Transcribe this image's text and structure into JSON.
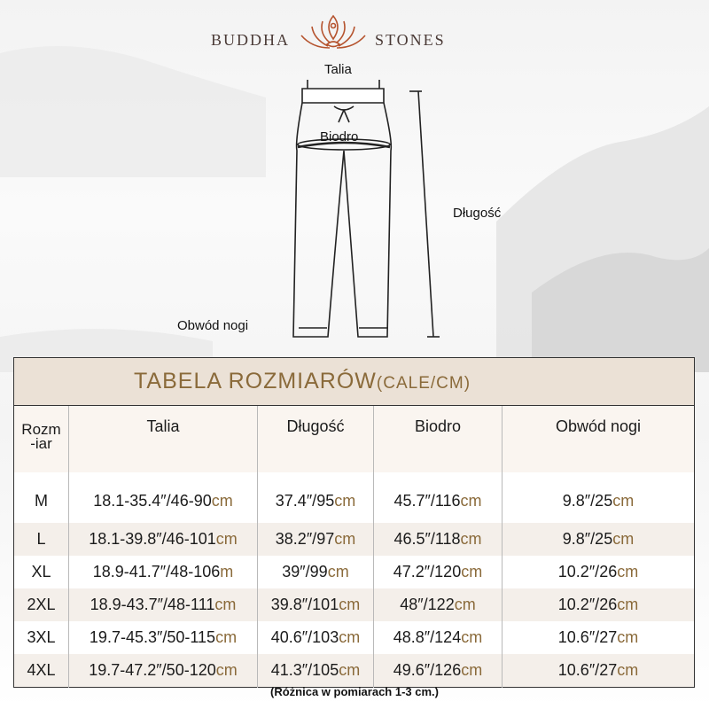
{
  "brand": {
    "left": "BUDDHA",
    "right": "STONES"
  },
  "diagram": {
    "waist": "Talia",
    "hip": "Biodro",
    "length": "Długość",
    "leg_opening": "Obwód nogi"
  },
  "table": {
    "title": "TABELA ROZMIARÓW",
    "title_units": "(CALE/CM)",
    "headers": [
      "Rozm\n-iar",
      "Talia",
      "Długość",
      "Biodro",
      "Obwód nogi"
    ],
    "header_size_line1": "Rozm",
    "header_size_line2": "-iar",
    "rows": [
      {
        "size": "M",
        "talia": [
          "18.1-35.4″/46-90",
          "cm"
        ],
        "dlugosc": [
          "37.4″/95",
          "cm"
        ],
        "biodro": [
          "45.7″/116",
          "cm"
        ],
        "obwod": [
          "9.8″/25",
          "cm"
        ]
      },
      {
        "size": "L",
        "talia": [
          "18.1-39.8″/46-101",
          "cm"
        ],
        "dlugosc": [
          "38.2″/97",
          "cm"
        ],
        "biodro": [
          "46.5″/118",
          "cm"
        ],
        "obwod": [
          "9.8″/25",
          "cm"
        ]
      },
      {
        "size": "XL",
        "talia": [
          "18.9-41.7″/48-106",
          "m"
        ],
        "dlugosc": [
          "39″/99",
          "cm"
        ],
        "biodro": [
          "47.2″/120",
          "cm"
        ],
        "obwod": [
          "10.2″/26",
          "cm"
        ]
      },
      {
        "size": "2XL",
        "talia": [
          "18.9-43.7″/48-111",
          "cm"
        ],
        "dlugosc": [
          "39.8″/101",
          "cm"
        ],
        "biodro": [
          "48″/122",
          "cm"
        ],
        "obwod": [
          "10.2″/26",
          "cm"
        ]
      },
      {
        "size": "3XL",
        "talia": [
          "19.7-45.3″/50-115",
          "cm"
        ],
        "dlugosc": [
          "40.6″/103",
          "cm"
        ],
        "biodro": [
          "48.8″/124",
          "cm"
        ],
        "obwod": [
          "10.6″/27",
          "cm"
        ]
      },
      {
        "size": "4XL",
        "talia": [
          "19.7-47.2″/50-120",
          "cm"
        ],
        "dlugosc": [
          "41.3″/105",
          "cm"
        ],
        "biodro": [
          "49.6″/126",
          "cm"
        ],
        "obwod": [
          "10.6″/27",
          "cm"
        ]
      }
    ]
  },
  "note": "(Różnica w pomiarach 1-3 cm.)",
  "colors": {
    "accent": "#8a6a3a",
    "title_bg": "#ebe1d6",
    "logo": "#b5532e"
  }
}
